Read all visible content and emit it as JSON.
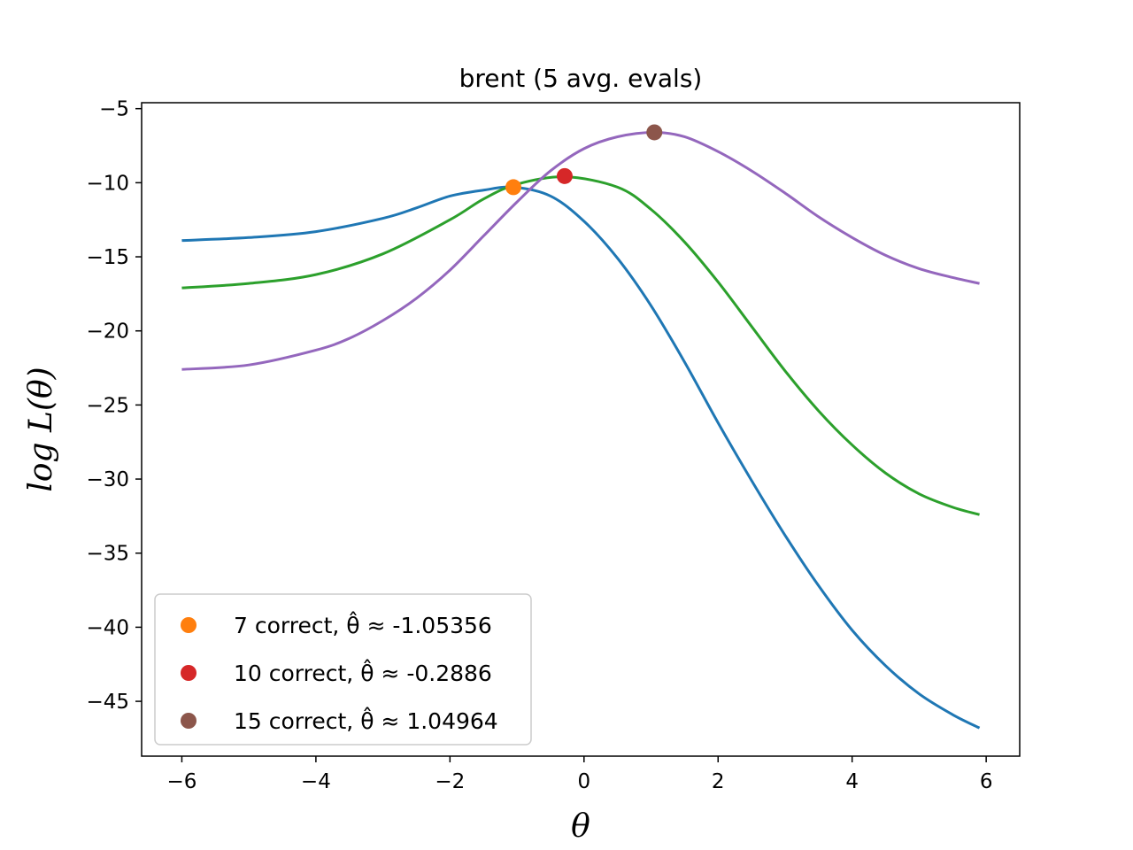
{
  "chart_data": {
    "type": "line",
    "title": "brent (5 avg. evals)",
    "xlabel": "θ",
    "ylabel": "log L(θ)",
    "xlim": [
      -6.6,
      6.5
    ],
    "ylim": [
      -48.7,
      -4.6
    ],
    "xticks": [
      -6,
      -4,
      -2,
      0,
      2,
      4,
      6
    ],
    "yticks": [
      -45,
      -40,
      -35,
      -30,
      -25,
      -20,
      -15,
      -10,
      -5
    ],
    "xtick_labels": [
      "−6",
      "−4",
      "−2",
      "0",
      "2",
      "4",
      "6"
    ],
    "ytick_labels": [
      "−45",
      "−40",
      "−35",
      "−30",
      "−25",
      "−20",
      "−15",
      "−10",
      "−5"
    ],
    "grid": false,
    "legend_position": "lower-left",
    "series": [
      {
        "color": "#1f77b4",
        "x": [
          -6.0,
          -5.0,
          -4.0,
          -3.0,
          -2.5,
          -2.0,
          -1.5,
          -1.05,
          -0.5,
          0.0,
          0.5,
          1.0,
          1.5,
          2.0,
          2.5,
          3.0,
          3.5,
          4.0,
          4.5,
          5.0,
          5.5,
          5.9
        ],
        "y": [
          -13.9,
          -13.7,
          -13.3,
          -12.4,
          -11.7,
          -10.9,
          -10.5,
          -10.3,
          -10.9,
          -12.6,
          -15.1,
          -18.3,
          -22.1,
          -26.2,
          -30.1,
          -33.8,
          -37.2,
          -40.2,
          -42.6,
          -44.5,
          -45.9,
          -46.8
        ]
      },
      {
        "color": "#2ca02c",
        "x": [
          -6.0,
          -5.0,
          -4.0,
          -3.0,
          -2.0,
          -1.5,
          -1.0,
          -0.29,
          0.5,
          1.0,
          1.5,
          2.0,
          2.5,
          3.0,
          3.5,
          4.0,
          4.5,
          5.0,
          5.5,
          5.9
        ],
        "y": [
          -17.1,
          -16.8,
          -16.2,
          -14.8,
          -12.5,
          -11.1,
          -10.1,
          -9.6,
          -10.3,
          -11.8,
          -14.0,
          -16.7,
          -19.7,
          -22.7,
          -25.4,
          -27.7,
          -29.6,
          -31.0,
          -31.9,
          -32.4
        ]
      },
      {
        "color": "#9467bd",
        "x": [
          -6.0,
          -5.0,
          -4.0,
          -3.5,
          -3.0,
          -2.5,
          -2.0,
          -1.5,
          -1.0,
          -0.5,
          0.0,
          0.5,
          1.05,
          1.5,
          2.0,
          2.5,
          3.0,
          3.5,
          4.0,
          4.5,
          5.0,
          5.5,
          5.9
        ],
        "y": [
          -22.6,
          -22.3,
          -21.3,
          -20.5,
          -19.3,
          -17.8,
          -15.9,
          -13.6,
          -11.3,
          -9.2,
          -7.7,
          -6.9,
          -6.6,
          -6.9,
          -7.9,
          -9.2,
          -10.7,
          -12.3,
          -13.7,
          -14.9,
          -15.8,
          -16.4,
          -16.8
        ]
      }
    ],
    "points": [
      {
        "label": "7 correct, θ̂ ≈ -1.05356",
        "x": -1.05356,
        "y": -10.3,
        "color": "#ff7f0e"
      },
      {
        "label": "10 correct, θ̂ ≈ -0.2886",
        "x": -0.2886,
        "y": -9.55,
        "color": "#d62728"
      },
      {
        "label": "15 correct, θ̂ ≈ 1.04964",
        "x": 1.04964,
        "y": -6.6,
        "color": "#8c564b"
      }
    ]
  }
}
